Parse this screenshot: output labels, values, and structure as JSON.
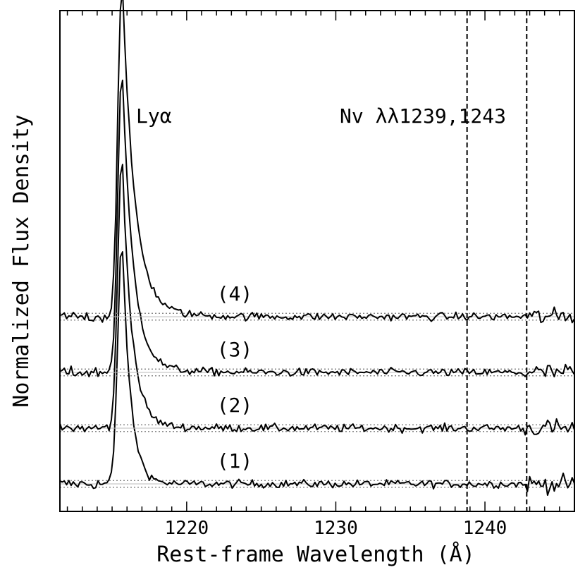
{
  "chart_data": {
    "type": "line",
    "xlabel": "Rest-frame Wavelength (Å)",
    "ylabel": "Normalized Flux Density",
    "xlim": [
      1211.5,
      1246
    ],
    "x_ticks": [
      1220,
      1230,
      1240
    ],
    "x_tick_labels": [
      "1220",
      "1230",
      "1240"
    ],
    "grid": false,
    "legend": "none",
    "offsets_units": "stacked spectra, vertically offset",
    "lines": {
      "lya_center": 1215.67,
      "nv_lines": [
        1238.8,
        1242.8
      ]
    },
    "annotations": [
      "Lyα",
      "Nv λλ1239,1243"
    ],
    "series": [
      {
        "name": "(1)",
        "offset": 0.0,
        "peak": 4.45
      },
      {
        "name": "(2)",
        "offset": 1.0,
        "peak": 4.9
      },
      {
        "name": "(3)",
        "offset": 2.0,
        "peak": 5.35
      },
      {
        "name": "(4)",
        "offset": 3.0,
        "peak": 5.9
      }
    ]
  }
}
